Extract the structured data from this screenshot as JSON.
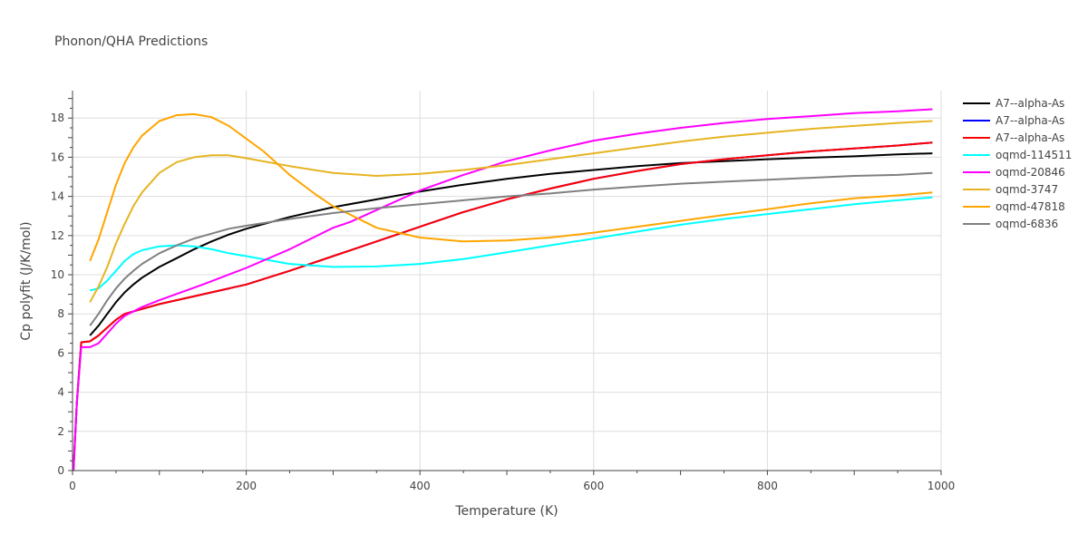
{
  "chart_data": {
    "type": "line",
    "title": "Phonon/QHA Predictions",
    "xlabel": "Temperature (K)",
    "ylabel": "Cp polyfit (J/K/mol)",
    "xlim": [
      0,
      1000
    ],
    "ylim": [
      0,
      19.4
    ],
    "xticks": [
      0,
      200,
      400,
      600,
      800,
      1000
    ],
    "yticks": [
      0,
      2,
      4,
      6,
      8,
      10,
      12,
      14,
      16,
      18
    ],
    "grid": true,
    "legend_position": "right",
    "series": [
      {
        "name": "A7--alpha-As",
        "color": "#000000",
        "points": [
          [
            20,
            6.9
          ],
          [
            30,
            7.4
          ],
          [
            40,
            8.0
          ],
          [
            50,
            8.6
          ],
          [
            60,
            9.1
          ],
          [
            70,
            9.5
          ],
          [
            80,
            9.85
          ],
          [
            100,
            10.4
          ],
          [
            120,
            10.85
          ],
          [
            140,
            11.3
          ],
          [
            160,
            11.7
          ],
          [
            180,
            12.05
          ],
          [
            200,
            12.35
          ],
          [
            250,
            12.95
          ],
          [
            300,
            13.45
          ],
          [
            350,
            13.85
          ],
          [
            400,
            14.25
          ],
          [
            450,
            14.6
          ],
          [
            500,
            14.9
          ],
          [
            550,
            15.15
          ],
          [
            600,
            15.35
          ],
          [
            650,
            15.55
          ],
          [
            700,
            15.7
          ],
          [
            750,
            15.8
          ],
          [
            800,
            15.9
          ],
          [
            850,
            15.98
          ],
          [
            900,
            16.05
          ],
          [
            950,
            16.15
          ],
          [
            990,
            16.2
          ]
        ]
      },
      {
        "name": "A7--alpha-As",
        "color": "#0000ff",
        "points": [
          [
            1,
            0.0
          ],
          [
            5,
            3.5
          ],
          [
            10,
            6.55
          ],
          [
            20,
            6.6
          ],
          [
            30,
            6.9
          ],
          [
            40,
            7.3
          ],
          [
            50,
            7.7
          ],
          [
            60,
            8.0
          ],
          [
            80,
            8.25
          ],
          [
            100,
            8.5
          ],
          [
            150,
            9.0
          ],
          [
            200,
            9.5
          ],
          [
            250,
            10.2
          ],
          [
            300,
            10.95
          ],
          [
            350,
            11.7
          ],
          [
            400,
            12.45
          ],
          [
            450,
            13.2
          ],
          [
            500,
            13.85
          ],
          [
            550,
            14.4
          ],
          [
            600,
            14.9
          ],
          [
            650,
            15.3
          ],
          [
            700,
            15.65
          ],
          [
            750,
            15.9
          ],
          [
            800,
            16.1
          ],
          [
            850,
            16.3
          ],
          [
            900,
            16.45
          ],
          [
            950,
            16.6
          ],
          [
            990,
            16.75
          ]
        ]
      },
      {
        "name": "A7--alpha-As",
        "color": "#ff0000",
        "points": [
          [
            1,
            0.0
          ],
          [
            5,
            3.5
          ],
          [
            10,
            6.55
          ],
          [
            20,
            6.6
          ],
          [
            30,
            6.9
          ],
          [
            40,
            7.3
          ],
          [
            50,
            7.7
          ],
          [
            60,
            8.0
          ],
          [
            80,
            8.25
          ],
          [
            100,
            8.5
          ],
          [
            150,
            9.0
          ],
          [
            200,
            9.5
          ],
          [
            250,
            10.2
          ],
          [
            300,
            10.95
          ],
          [
            350,
            11.7
          ],
          [
            400,
            12.45
          ],
          [
            450,
            13.2
          ],
          [
            500,
            13.85
          ],
          [
            550,
            14.4
          ],
          [
            600,
            14.9
          ],
          [
            650,
            15.3
          ],
          [
            700,
            15.65
          ],
          [
            750,
            15.9
          ],
          [
            800,
            16.1
          ],
          [
            850,
            16.3
          ],
          [
            900,
            16.45
          ],
          [
            950,
            16.6
          ],
          [
            990,
            16.75
          ]
        ]
      },
      {
        "name": "oqmd-114511",
        "color": "#00ffff",
        "points": [
          [
            20,
            9.2
          ],
          [
            30,
            9.3
          ],
          [
            40,
            9.7
          ],
          [
            50,
            10.2
          ],
          [
            60,
            10.7
          ],
          [
            70,
            11.05
          ],
          [
            80,
            11.25
          ],
          [
            100,
            11.45
          ],
          [
            120,
            11.5
          ],
          [
            140,
            11.45
          ],
          [
            160,
            11.3
          ],
          [
            180,
            11.1
          ],
          [
            200,
            10.95
          ],
          [
            250,
            10.55
          ],
          [
            300,
            10.4
          ],
          [
            350,
            10.42
          ],
          [
            400,
            10.55
          ],
          [
            450,
            10.8
          ],
          [
            500,
            11.15
          ],
          [
            550,
            11.5
          ],
          [
            600,
            11.85
          ],
          [
            650,
            12.2
          ],
          [
            700,
            12.55
          ],
          [
            750,
            12.85
          ],
          [
            800,
            13.1
          ],
          [
            850,
            13.35
          ],
          [
            900,
            13.6
          ],
          [
            950,
            13.8
          ],
          [
            990,
            13.95
          ]
        ]
      },
      {
        "name": "oqmd-20846",
        "color": "#ff00ff",
        "points": [
          [
            1,
            0.0
          ],
          [
            5,
            3.5
          ],
          [
            10,
            6.3
          ],
          [
            20,
            6.3
          ],
          [
            30,
            6.5
          ],
          [
            40,
            7.0
          ],
          [
            50,
            7.5
          ],
          [
            60,
            7.9
          ],
          [
            80,
            8.35
          ],
          [
            100,
            8.7
          ],
          [
            150,
            9.5
          ],
          [
            200,
            10.35
          ],
          [
            250,
            11.3
          ],
          [
            300,
            12.4
          ],
          [
            320,
            12.7
          ],
          [
            350,
            13.3
          ],
          [
            400,
            14.3
          ],
          [
            450,
            15.1
          ],
          [
            500,
            15.8
          ],
          [
            550,
            16.35
          ],
          [
            600,
            16.85
          ],
          [
            650,
            17.2
          ],
          [
            700,
            17.5
          ],
          [
            750,
            17.75
          ],
          [
            800,
            17.95
          ],
          [
            850,
            18.1
          ],
          [
            900,
            18.25
          ],
          [
            950,
            18.35
          ],
          [
            990,
            18.45
          ]
        ]
      },
      {
        "name": "oqmd-3747",
        "color": "#e6b422",
        "points": [
          [
            20,
            8.6
          ],
          [
            30,
            9.4
          ],
          [
            40,
            10.4
          ],
          [
            50,
            11.6
          ],
          [
            60,
            12.6
          ],
          [
            70,
            13.5
          ],
          [
            80,
            14.2
          ],
          [
            100,
            15.2
          ],
          [
            120,
            15.75
          ],
          [
            140,
            16.0
          ],
          [
            160,
            16.1
          ],
          [
            180,
            16.1
          ],
          [
            200,
            15.95
          ],
          [
            250,
            15.55
          ],
          [
            300,
            15.2
          ],
          [
            350,
            15.05
          ],
          [
            400,
            15.15
          ],
          [
            450,
            15.35
          ],
          [
            500,
            15.6
          ],
          [
            550,
            15.9
          ],
          [
            600,
            16.2
          ],
          [
            650,
            16.5
          ],
          [
            700,
            16.8
          ],
          [
            750,
            17.05
          ],
          [
            800,
            17.25
          ],
          [
            850,
            17.45
          ],
          [
            900,
            17.6
          ],
          [
            950,
            17.75
          ],
          [
            990,
            17.85
          ]
        ]
      },
      {
        "name": "oqmd-47818",
        "color": "#ffa500",
        "points": [
          [
            20,
            10.7
          ],
          [
            30,
            11.8
          ],
          [
            40,
            13.2
          ],
          [
            50,
            14.6
          ],
          [
            60,
            15.7
          ],
          [
            70,
            16.5
          ],
          [
            80,
            17.1
          ],
          [
            100,
            17.85
          ],
          [
            120,
            18.15
          ],
          [
            140,
            18.2
          ],
          [
            160,
            18.05
          ],
          [
            180,
            17.6
          ],
          [
            200,
            16.95
          ],
          [
            220,
            16.3
          ],
          [
            250,
            15.1
          ],
          [
            280,
            14.1
          ],
          [
            300,
            13.5
          ],
          [
            350,
            12.4
          ],
          [
            400,
            11.9
          ],
          [
            450,
            11.7
          ],
          [
            500,
            11.75
          ],
          [
            550,
            11.9
          ],
          [
            600,
            12.15
          ],
          [
            650,
            12.45
          ],
          [
            700,
            12.75
          ],
          [
            750,
            13.05
          ],
          [
            800,
            13.35
          ],
          [
            850,
            13.65
          ],
          [
            900,
            13.9
          ],
          [
            950,
            14.05
          ],
          [
            990,
            14.2
          ]
        ]
      },
      {
        "name": "oqmd-6836",
        "color": "#808080",
        "points": [
          [
            20,
            7.4
          ],
          [
            30,
            8.0
          ],
          [
            40,
            8.7
          ],
          [
            50,
            9.3
          ],
          [
            60,
            9.8
          ],
          [
            70,
            10.2
          ],
          [
            80,
            10.55
          ],
          [
            100,
            11.1
          ],
          [
            120,
            11.5
          ],
          [
            140,
            11.85
          ],
          [
            160,
            12.1
          ],
          [
            180,
            12.35
          ],
          [
            200,
            12.5
          ],
          [
            250,
            12.85
          ],
          [
            300,
            13.15
          ],
          [
            350,
            13.4
          ],
          [
            400,
            13.6
          ],
          [
            450,
            13.8
          ],
          [
            500,
            14.0
          ],
          [
            550,
            14.15
          ],
          [
            600,
            14.35
          ],
          [
            650,
            14.5
          ],
          [
            700,
            14.65
          ],
          [
            750,
            14.75
          ],
          [
            800,
            14.85
          ],
          [
            850,
            14.95
          ],
          [
            900,
            15.05
          ],
          [
            950,
            15.1
          ],
          [
            990,
            15.2
          ]
        ]
      }
    ]
  }
}
